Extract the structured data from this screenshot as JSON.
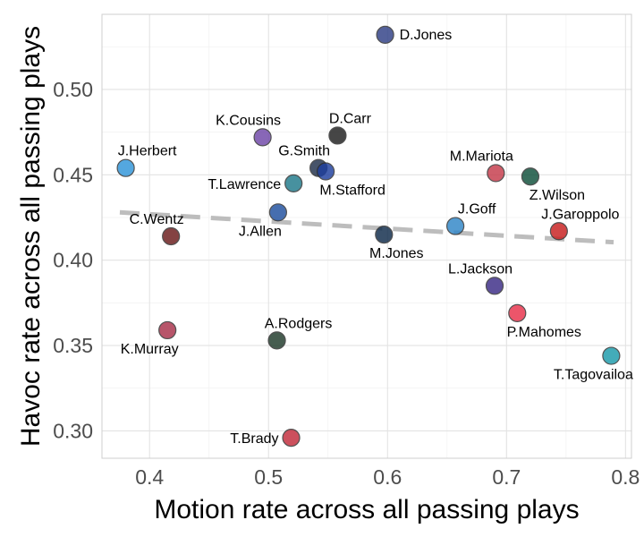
{
  "chart_data": {
    "type": "scatter",
    "title": "",
    "xlabel": "Motion rate across all passing plays",
    "ylabel": "Havoc rate across all passing plays",
    "xlim": [
      0.36,
      0.805
    ],
    "ylim": [
      0.284,
      0.544
    ],
    "x_ticks": [
      0.4,
      0.5,
      0.6,
      0.7,
      0.8
    ],
    "y_ticks": [
      0.3,
      0.35,
      0.4,
      0.45,
      0.5
    ],
    "x_tick_labels": [
      "0.4",
      "0.5",
      "0.6",
      "0.7",
      "0.8"
    ],
    "y_tick_labels": [
      "0.30",
      "0.35",
      "0.40",
      "0.45",
      "0.50"
    ],
    "trend_line": {
      "style": "dashed",
      "color": "#bdbdbd",
      "x": [
        0.375,
        0.79
      ],
      "y": [
        0.428,
        0.4105
      ]
    },
    "points": [
      {
        "name": "D.Jones",
        "x": 0.598,
        "y": 0.532,
        "color": "#2f3f86",
        "label_pos": "right"
      },
      {
        "name": "K.Cousins",
        "x": 0.495,
        "y": 0.472,
        "color": "#6f46a8",
        "label_pos": "above-left"
      },
      {
        "name": "D.Carr",
        "x": 0.558,
        "y": 0.473,
        "color": "#1e1e1e",
        "label_pos": "above"
      },
      {
        "name": "J.Herbert",
        "x": 0.38,
        "y": 0.454,
        "color": "#2f94d8",
        "label_pos": "above-right"
      },
      {
        "name": "G.Smith",
        "x": 0.542,
        "y": 0.454,
        "color": "#1f2f4a",
        "label_pos": "above-left"
      },
      {
        "name": "M.Stafford",
        "x": 0.548,
        "y": 0.452,
        "color": "#1e3f9e",
        "label_pos": "below-right"
      },
      {
        "name": "T.Lawrence",
        "x": 0.521,
        "y": 0.445,
        "color": "#1f7a8a",
        "label_pos": "left"
      },
      {
        "name": "M.Mariota",
        "x": 0.691,
        "y": 0.451,
        "color": "#c53a4a",
        "label_pos": "above-left"
      },
      {
        "name": "Z.Wilson",
        "x": 0.72,
        "y": 0.449,
        "color": "#0e4f3a",
        "label_pos": "below-right"
      },
      {
        "name": "J.Allen",
        "x": 0.508,
        "y": 0.428,
        "color": "#1e4f9e",
        "label_pos": "below-left"
      },
      {
        "name": "C.Wentz",
        "x": 0.418,
        "y": 0.414,
        "color": "#6a1a1a",
        "label_pos": "above-left"
      },
      {
        "name": "M.Jones",
        "x": 0.597,
        "y": 0.415,
        "color": "#0e2a4a",
        "label_pos": "below"
      },
      {
        "name": "J.Goff",
        "x": 0.657,
        "y": 0.42,
        "color": "#2f86c8",
        "label_pos": "above-right"
      },
      {
        "name": "J.Garoppolo",
        "x": 0.744,
        "y": 0.417,
        "color": "#c81e1e",
        "label_pos": "above-right"
      },
      {
        "name": "L.Jackson",
        "x": 0.69,
        "y": 0.385,
        "color": "#3a2a86",
        "label_pos": "above-left"
      },
      {
        "name": "P.Mahomes",
        "x": 0.709,
        "y": 0.369,
        "color": "#e8304a",
        "label_pos": "below-right"
      },
      {
        "name": "K.Murray",
        "x": 0.415,
        "y": 0.359,
        "color": "#a8304a",
        "label_pos": "below-left"
      },
      {
        "name": "A.Rodgers",
        "x": 0.507,
        "y": 0.353,
        "color": "#1f3a2a",
        "label_pos": "above-right"
      },
      {
        "name": "T.Tagovailoa",
        "x": 0.788,
        "y": 0.344,
        "color": "#1a9aaa",
        "label_pos": "below-left"
      },
      {
        "name": "T.Brady",
        "x": 0.519,
        "y": 0.296,
        "color": "#c22a3a",
        "label_pos": "left"
      }
    ]
  }
}
